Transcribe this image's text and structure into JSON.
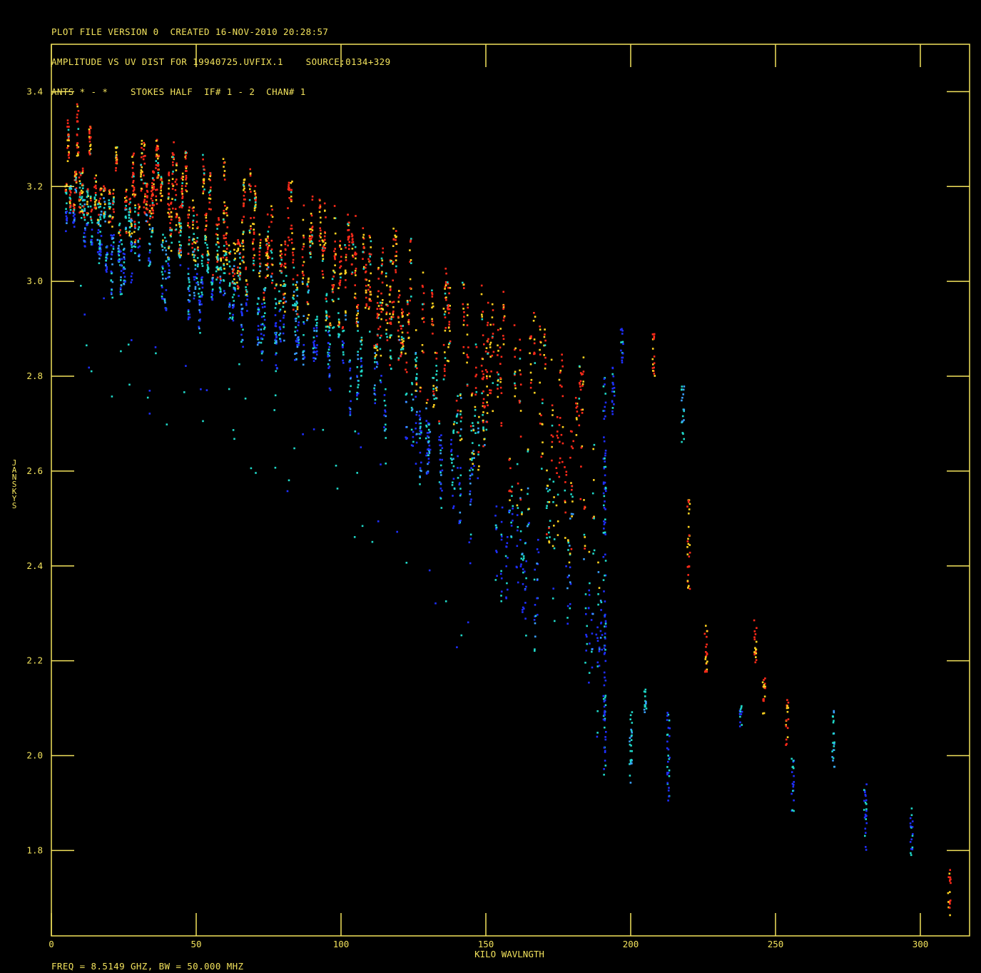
{
  "header": {
    "line1": "PLOT FILE VERSION 0  CREATED 16-NOV-2010 20:28:57",
    "line2": "AMPLITUDE VS UV DIST FOR 19940725.UVFIX.1    SOURCE:0134+329",
    "line3": "ANTS * - *    STOKES HALF  IF# 1 - 2  CHAN# 1"
  },
  "footer": "FREQ = 8.5149 GHZ, BW = 50.000 MHZ",
  "colors": {
    "axis": "#f2e25c",
    "background": "#000000",
    "points": [
      "#1f2fff",
      "#1fd8c8",
      "#ff2a1a",
      "#ffd21f",
      "#3aa0ff"
    ]
  },
  "chart_data": {
    "type": "scatter",
    "xlabel": "KILO WAVLNGTH",
    "ylabel": "JANSKYS",
    "xlim": [
      0,
      317
    ],
    "ylim": [
      1.62,
      3.5
    ],
    "xticks": [
      0,
      50,
      100,
      150,
      200,
      250,
      300
    ],
    "xtick_labels": [
      "0",
      "50",
      "100",
      "150",
      "200",
      "250",
      "300"
    ],
    "yticks": [
      1.8,
      2.0,
      2.2,
      2.4,
      2.6,
      2.8,
      3.0,
      3.2,
      3.4
    ],
    "ytick_labels": [
      "1.8",
      "2.0",
      "2.2",
      "2.4",
      "2.6",
      "2.8",
      "3.0",
      "3.2",
      "3.4"
    ],
    "grid": false,
    "trend": {
      "description": "amplitude falls with uv distance; columns of points at discrete uv distances",
      "upper_envelope": [
        [
          5,
          3.33
        ],
        [
          25,
          3.3
        ],
        [
          50,
          3.24
        ],
        [
          75,
          3.18
        ],
        [
          100,
          3.12
        ],
        [
          125,
          3.05
        ],
        [
          150,
          2.96
        ],
        [
          175,
          2.85
        ],
        [
          200,
          2.72
        ],
        [
          225,
          2.52
        ],
        [
          250,
          2.22
        ],
        [
          275,
          2.03
        ],
        [
          300,
          1.87
        ],
        [
          310,
          1.76
        ]
      ],
      "lower_envelope": [
        [
          5,
          3.08
        ],
        [
          25,
          3.0
        ],
        [
          50,
          2.93
        ],
        [
          75,
          2.85
        ],
        [
          100,
          2.78
        ],
        [
          125,
          2.65
        ],
        [
          150,
          2.42
        ],
        [
          175,
          2.25
        ],
        [
          200,
          2.05
        ],
        [
          225,
          2.18
        ],
        [
          250,
          2.05
        ],
        [
          275,
          1.96
        ],
        [
          300,
          1.8
        ],
        [
          310,
          1.66
        ]
      ]
    },
    "columns": [
      {
        "x": 191,
        "ymin": 1.96,
        "ymax": 2.8
      },
      {
        "x": 194,
        "ymin": 2.72,
        "ymax": 2.82
      },
      {
        "x": 197,
        "ymin": 2.82,
        "ymax": 2.9
      },
      {
        "x": 200,
        "ymin": 1.94,
        "ymax": 2.1
      },
      {
        "x": 205,
        "ymin": 2.08,
        "ymax": 2.14
      },
      {
        "x": 208,
        "ymin": 2.8,
        "ymax": 2.89
      },
      {
        "x": 213,
        "ymin": 1.9,
        "ymax": 2.1
      },
      {
        "x": 218,
        "ymin": 2.66,
        "ymax": 2.78
      },
      {
        "x": 220,
        "ymin": 2.34,
        "ymax": 2.54
      },
      {
        "x": 226,
        "ymin": 2.17,
        "ymax": 2.29
      },
      {
        "x": 238,
        "ymin": 2.06,
        "ymax": 2.12
      },
      {
        "x": 243,
        "ymin": 2.19,
        "ymax": 2.29
      },
      {
        "x": 246,
        "ymin": 2.08,
        "ymax": 2.17
      },
      {
        "x": 254,
        "ymin": 2.02,
        "ymax": 2.12
      },
      {
        "x": 256,
        "ymin": 1.88,
        "ymax": 2.0
      },
      {
        "x": 270,
        "ymin": 1.97,
        "ymax": 2.1
      },
      {
        "x": 281,
        "ymin": 1.8,
        "ymax": 1.95
      },
      {
        "x": 297,
        "ymin": 1.79,
        "ymax": 1.89
      },
      {
        "x": 310,
        "ymin": 1.66,
        "ymax": 1.76
      }
    ]
  }
}
